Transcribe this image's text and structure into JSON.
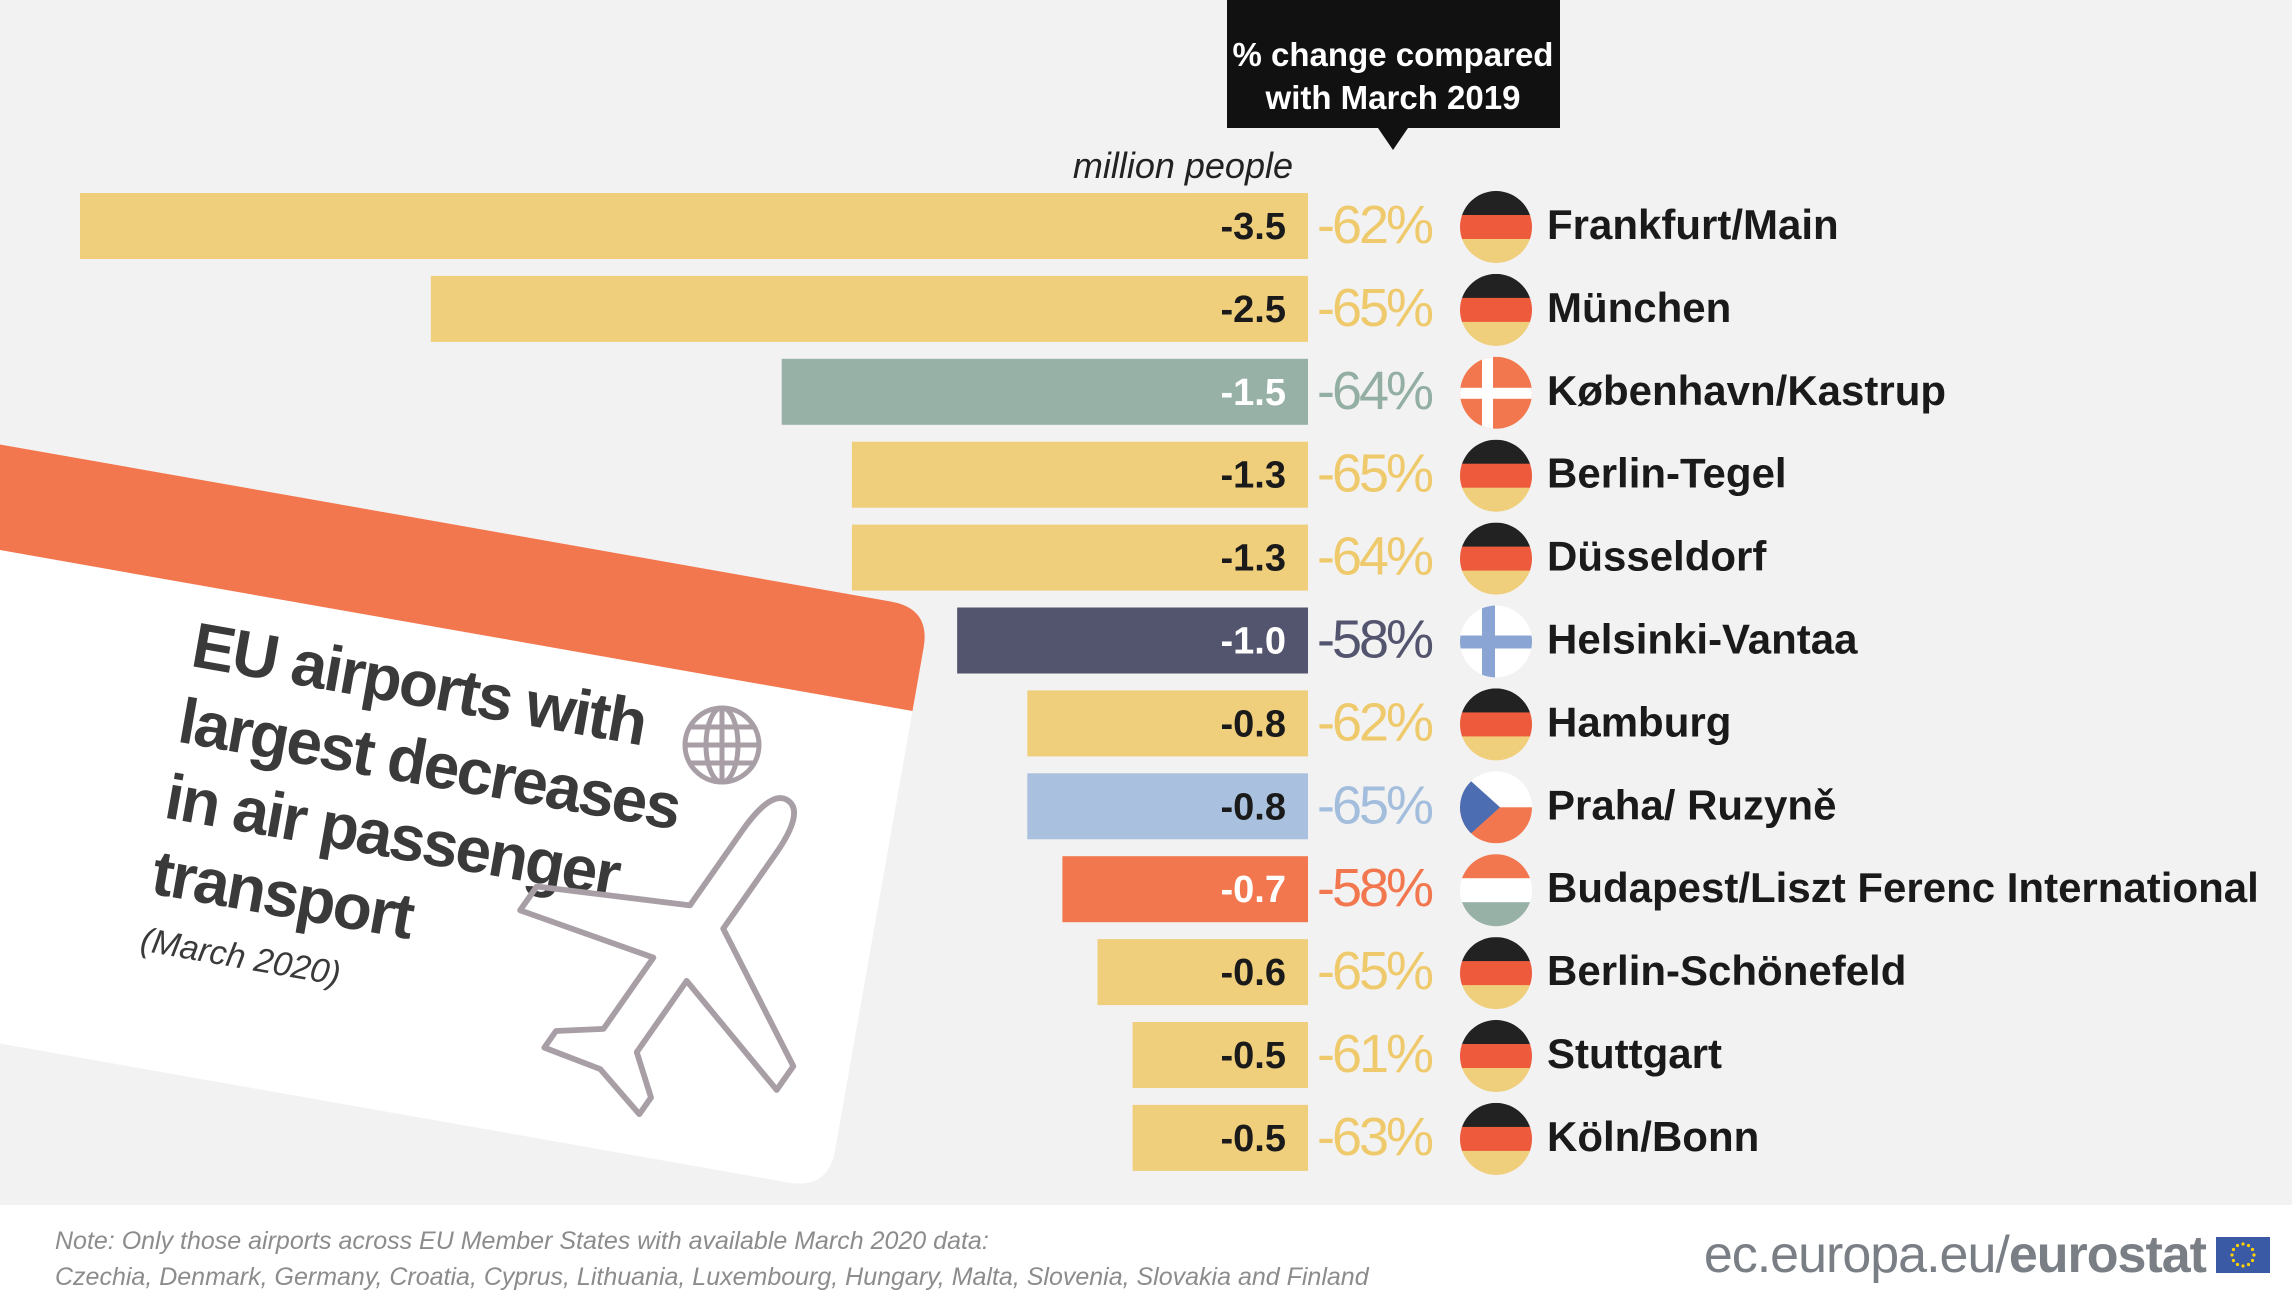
{
  "chart_data": {
    "type": "bar",
    "orientation": "horizontal",
    "title": "EU airports with largest decreases in air passenger transport",
    "subtitle": "(March 2020)",
    "unit_label": "million people",
    "change_header": [
      "% change compared",
      "with March 2019"
    ],
    "xlim": [
      -3.5,
      0
    ],
    "categories": [
      "Frankfurt/Main",
      "München",
      "København/Kastrup",
      "Berlin-Tegel",
      "Düsseldorf",
      "Helsinki-Vantaa",
      "Hamburg",
      "Praha/ Ruzyně",
      "Budapest/Liszt Ferenc International",
      "Berlin-Schönefeld",
      "Stuttgart",
      "Köln/Bonn"
    ],
    "values": [
      -3.5,
      -2.5,
      -1.5,
      -1.3,
      -1.3,
      -1.0,
      -0.8,
      -0.8,
      -0.7,
      -0.6,
      -0.5,
      -0.5
    ],
    "value_labels": [
      "-3.5",
      "-2.5",
      "-1.5",
      "-1.3",
      "-1.3",
      "-1.0",
      "-0.8",
      "-0.8",
      "-0.7",
      "-0.6",
      "-0.5",
      "-0.5"
    ],
    "pct_change": [
      "-62%",
      "-65%",
      "-64%",
      "-65%",
      "-64%",
      "-58%",
      "-62%",
      "-65%",
      "-58%",
      "-65%",
      "-61%",
      "-63%"
    ],
    "countries": [
      "de",
      "de",
      "dk",
      "de",
      "de",
      "fi",
      "de",
      "cz",
      "hu",
      "de",
      "de",
      "de"
    ],
    "bar_colors": [
      "#f0cf7c",
      "#f0cf7c",
      "#97b1a7",
      "#f0cf7c",
      "#f0cf7c",
      "#53546e",
      "#f0cf7c",
      "#a9c1de",
      "#f2774e",
      "#f0cf7c",
      "#f0cf7c",
      "#f0cf7c"
    ],
    "pct_colors": [
      "#efca6c",
      "#efca6c",
      "#93aea3",
      "#efca6c",
      "#efca6c",
      "#53546e",
      "#efca6c",
      "#a3bedd",
      "#f2774e",
      "#efca6c",
      "#efca6c",
      "#efca6c"
    ],
    "value_text_colors": [
      "#1a1a1a",
      "#1a1a1a",
      "#ffffff",
      "#1a1a1a",
      "#1a1a1a",
      "#ffffff",
      "#1a1a1a",
      "#1a1a1a",
      "#ffffff",
      "#1a1a1a",
      "#1a1a1a",
      "#1a1a1a"
    ]
  },
  "card": {
    "title_lines": [
      "EU airports with",
      "largest decreases",
      "in air passenger",
      "transport"
    ],
    "subtitle": "(March 2020)",
    "accent": "#f2774e",
    "icon_names": [
      "globe-icon",
      "airplane-icon"
    ]
  },
  "footer": {
    "note_line1": "Note: Only those airports across EU Member States with available March 2020 data:",
    "note_line2": "Czechia, Denmark, Germany, Croatia, Cyprus, Lithuania, Luxembourg, Hungary, Malta, Slovenia, Slovakia and Finland",
    "brand_prefix": "ec.europa.eu/",
    "brand_strong": "eurostat",
    "brand_icon": "eu-flag-icon"
  }
}
